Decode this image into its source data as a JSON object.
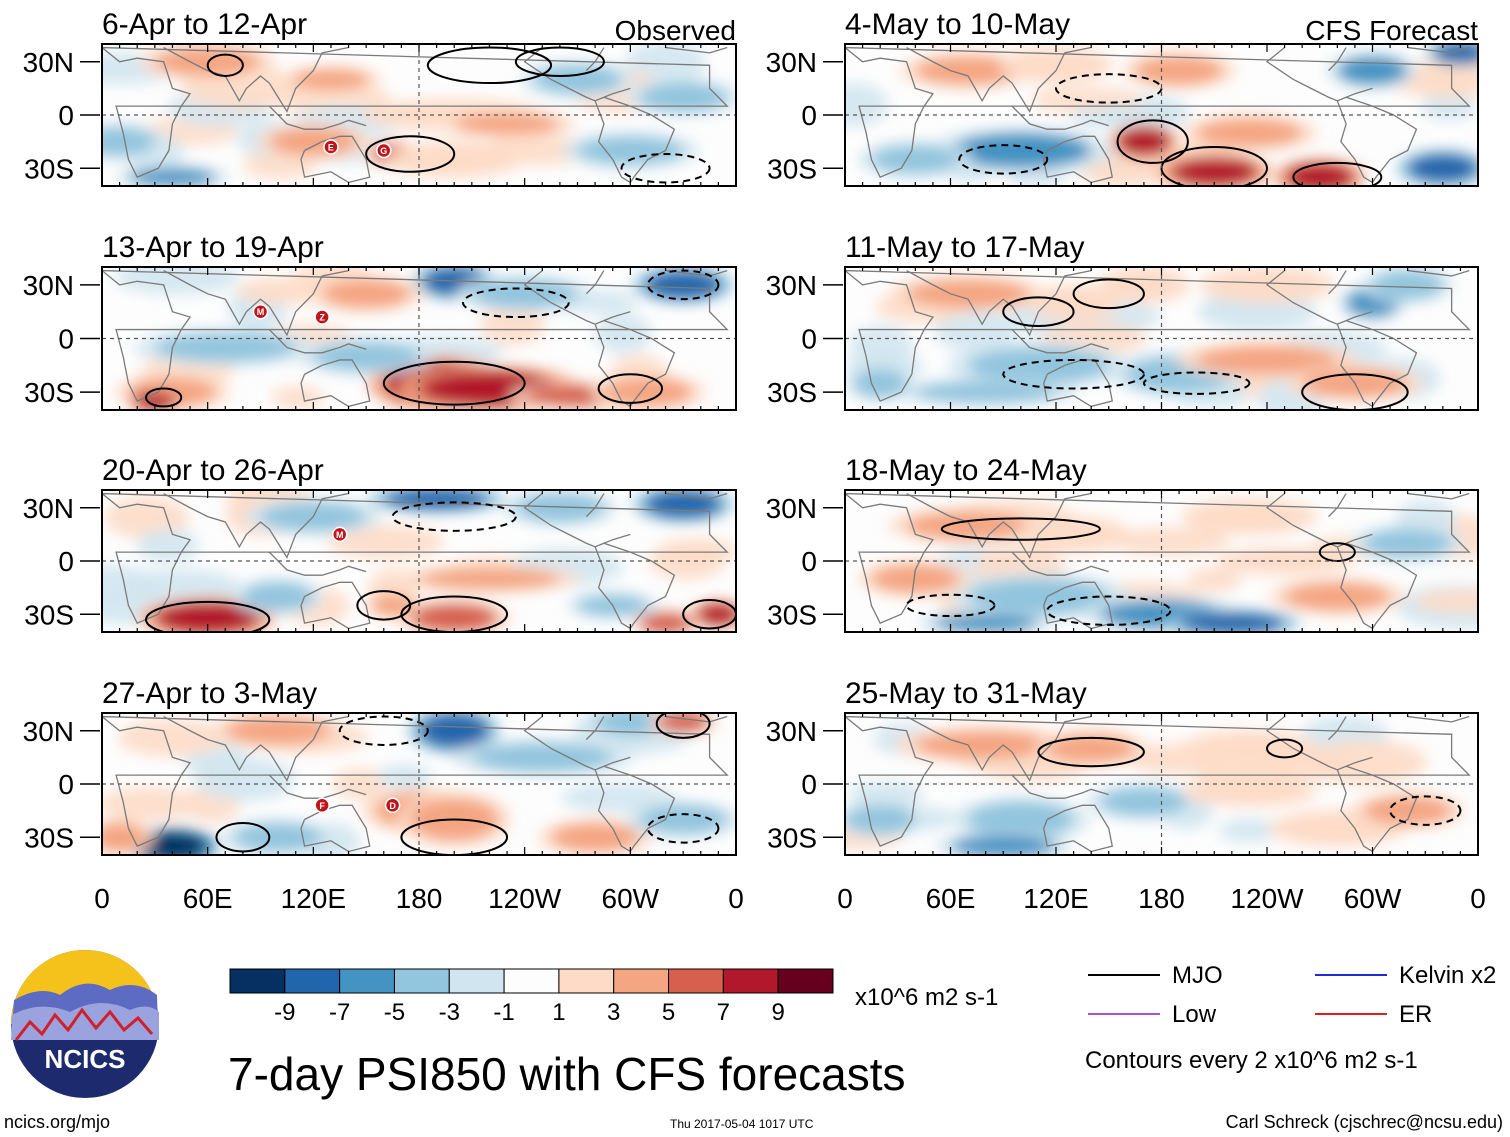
{
  "chart_data": {
    "type": "heatmap",
    "title": "7-day PSI850 with CFS forecasts",
    "field": "PSI850 anomaly",
    "units": "x10^6 m2 s-1",
    "contour_note": "Contours every 2 x10^6 m2 s-1",
    "column_labels": [
      "Observed",
      "CFS Forecast"
    ],
    "longitude_ticks": [
      "0",
      "60E",
      "120E",
      "180",
      "120W",
      "60W",
      "0"
    ],
    "latitude_ticks": [
      "30N",
      "0",
      "30S"
    ],
    "latitude_range": [
      -40,
      40
    ],
    "longitude_range": [
      0,
      360
    ],
    "colorbar_ticks": [
      "-9",
      "-7",
      "-5",
      "-3",
      "-1",
      "1",
      "3",
      "5",
      "7",
      "9"
    ],
    "colorbar_colors": [
      "#053061",
      "#2166ac",
      "#4393c3",
      "#92c5de",
      "#d1e5f0",
      "#fdfdfd",
      "#fddbc7",
      "#f4a582",
      "#d6604d",
      "#b2182b",
      "#67001f"
    ],
    "legend": [
      {
        "name": "MJO",
        "color": "#000000"
      },
      {
        "name": "Kelvin x2",
        "color": "#1c2cd6"
      },
      {
        "name": "Low",
        "color": "#a550e0"
      },
      {
        "name": "ER",
        "color": "#e02020"
      }
    ],
    "panels": [
      {
        "label": "6-Apr to 12-Apr",
        "column": "Observed",
        "storms": [
          "E",
          "G"
        ]
      },
      {
        "label": "13-Apr to 19-Apr",
        "column": "Observed",
        "storms": [
          "M",
          "Z"
        ]
      },
      {
        "label": "20-Apr to 26-Apr",
        "column": "Observed",
        "storms": [
          "M"
        ]
      },
      {
        "label": "27-Apr to 3-May",
        "column": "Observed",
        "storms": [
          "F",
          "D"
        ]
      },
      {
        "label": "4-May to 10-May",
        "column": "CFS Forecast",
        "storms": []
      },
      {
        "label": "11-May to 17-May",
        "column": "CFS Forecast",
        "storms": []
      },
      {
        "label": "18-May to 24-May",
        "column": "CFS Forecast",
        "storms": []
      },
      {
        "label": "25-May to 31-May",
        "column": "CFS Forecast",
        "storms": []
      }
    ]
  },
  "footer": {
    "logo_text": "NCICS",
    "website": "ncics.org/mjo",
    "timestamp": "Thu 2017-05-04 1017 UTC",
    "author": "Carl Schreck (cjschrec@ncsu.edu)"
  }
}
